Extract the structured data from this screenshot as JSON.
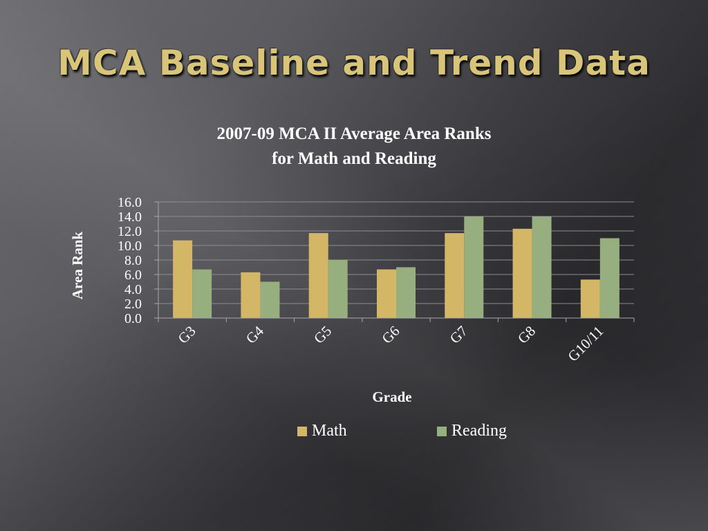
{
  "slide": {
    "title": "MCA Baseline and Trend Data"
  },
  "colors": {
    "title_gold": "#d9c57a",
    "math": "#d4b766",
    "reading": "#97ae7e",
    "gridline": "#8d8d92",
    "axis": "#a8a8ac"
  },
  "chart_data": {
    "type": "bar",
    "title_line1": "2007-09 MCA II Average Area Ranks",
    "title_line2": "for Math and Reading",
    "xlabel": "Grade",
    "ylabel": "Area Rank",
    "categories": [
      "G3",
      "G4",
      "G5",
      "G6",
      "G7",
      "G8",
      "G10/11"
    ],
    "series": [
      {
        "name": "Math",
        "values": [
          10.7,
          6.3,
          11.7,
          6.7,
          11.7,
          12.3,
          5.3
        ]
      },
      {
        "name": "Reading",
        "values": [
          6.7,
          5.0,
          8.0,
          7.0,
          14.0,
          14.0,
          11.0
        ]
      }
    ],
    "ylim": [
      0,
      16
    ],
    "yticks": [
      "0.0",
      "2.0",
      "4.0",
      "6.0",
      "8.0",
      "10.0",
      "12.0",
      "14.0",
      "16.0"
    ],
    "grid": true,
    "legend_position": "bottom"
  }
}
